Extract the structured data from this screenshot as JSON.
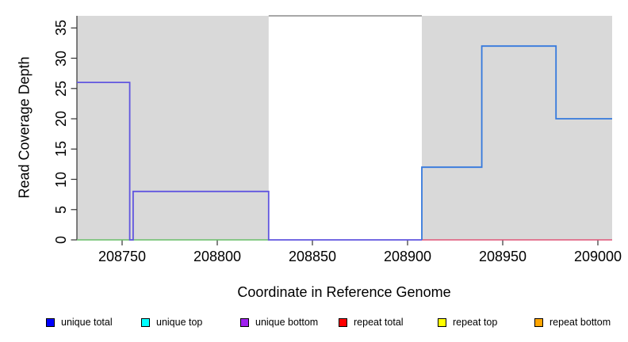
{
  "figure": {
    "background": "#ffffff",
    "plot_background": "#ffffff",
    "shaded_region_color": "#d9d9d9",
    "axis_color": "#3f3f3f",
    "tick_color": "#333333"
  },
  "chart_data": {
    "type": "line",
    "subtype": "step",
    "title": "",
    "xlabel": "Coordinate in Reference Genome",
    "ylabel": "Read Coverage Depth",
    "xlim": [
      208726.25,
      209007.5
    ],
    "ylim": [
      0,
      37
    ],
    "x_ticks": [
      208750,
      208800,
      208850,
      208900,
      208950,
      209000
    ],
    "y_ticks": [
      0,
      5,
      10,
      15,
      20,
      25,
      30,
      35
    ],
    "grid": false,
    "shaded_regions": [
      {
        "name": "shaded-region-left",
        "x0": 208726.25,
        "x1": 208827,
        "color": "#d9d9d9"
      },
      {
        "name": "shaded-region-right",
        "x0": 208907.5,
        "x1": 209007.5,
        "color": "#d9d9d9"
      }
    ],
    "series": [
      {
        "name": "gap-top-line",
        "color": "#8a8a8a",
        "width": 1.5,
        "points": [
          [
            208827,
            37
          ],
          [
            208907.5,
            37
          ]
        ]
      },
      {
        "name": "zero-baseline-left",
        "color": "#69bd69",
        "width": 1.6,
        "points": [
          [
            208726.25,
            0
          ],
          [
            208827,
            0
          ]
        ]
      },
      {
        "name": "zero-baseline-right",
        "color": "#df5578",
        "width": 1.6,
        "points": [
          [
            208907.5,
            0
          ],
          [
            209007.5,
            0
          ]
        ]
      },
      {
        "name": "unique-coverage-left",
        "color": "#6156df",
        "width": 1.8,
        "points": [
          [
            208726.25,
            26
          ],
          [
            208754,
            26
          ],
          [
            208754,
            0
          ],
          [
            208755.8,
            0
          ],
          [
            208755.8,
            8
          ],
          [
            208827,
            8
          ],
          [
            208827,
            0
          ],
          [
            208907.5,
            0
          ]
        ]
      },
      {
        "name": "unique-coverage-right",
        "color": "#3579dd",
        "width": 1.8,
        "points": [
          [
            208907.5,
            0
          ],
          [
            208907.5,
            12
          ],
          [
            208939,
            12
          ],
          [
            208939,
            32
          ],
          [
            208978,
            32
          ],
          [
            208978,
            20
          ],
          [
            209007.5,
            20
          ]
        ]
      }
    ],
    "legend": {
      "position": "bottom",
      "items": [
        {
          "label": "unique total",
          "color": "#0000ff"
        },
        {
          "label": "unique top",
          "color": "#00ffff"
        },
        {
          "label": "unique bottom",
          "color": "#a020f0"
        },
        {
          "label": "repeat total",
          "color": "#ff0000"
        },
        {
          "label": "repeat top",
          "color": "#ffff00"
        },
        {
          "label": "repeat bottom",
          "color": "#ffa500"
        }
      ]
    }
  }
}
